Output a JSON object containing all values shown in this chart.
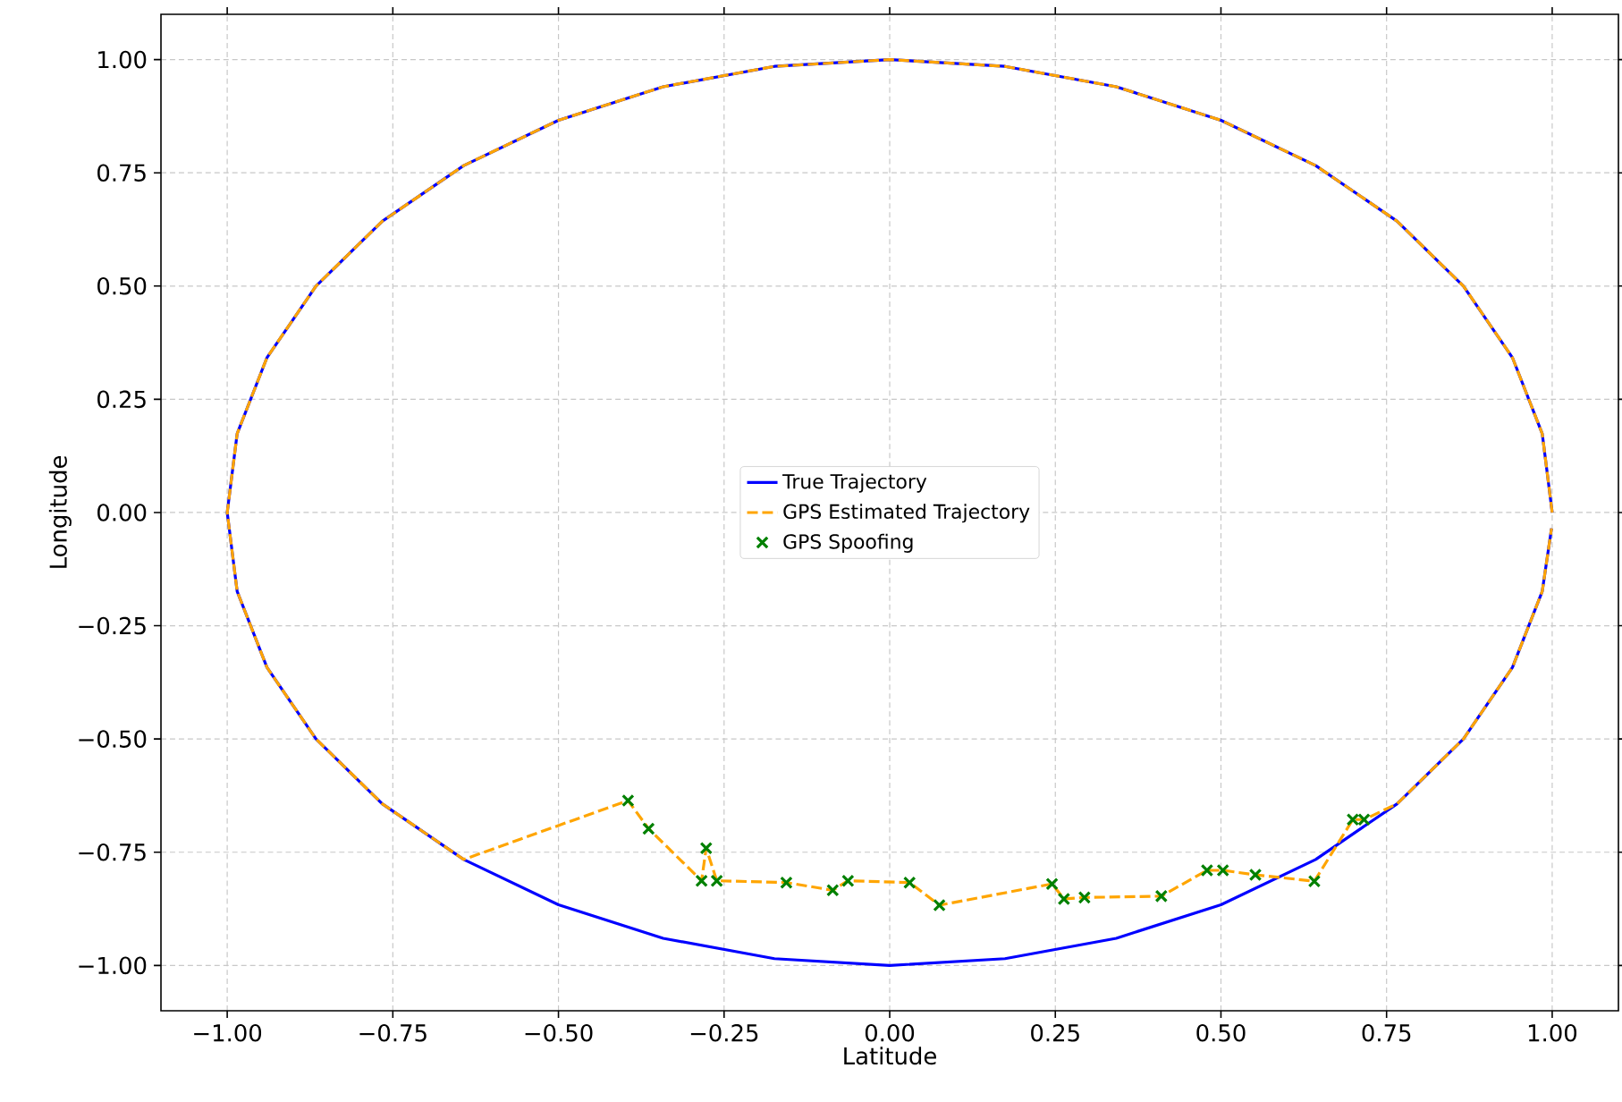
{
  "chart_data": {
    "type": "line",
    "xlabel": "Latitude",
    "ylabel": "Longitude",
    "xlim": [
      -1.1,
      1.1
    ],
    "ylim": [
      -1.1,
      1.1
    ],
    "xticks": [
      {
        "value": -1,
        "label": "−1.00"
      },
      {
        "value": -0.75,
        "label": "−0.75"
      },
      {
        "value": -0.5,
        "label": "−0.50"
      },
      {
        "value": -0.25,
        "label": "−0.25"
      },
      {
        "value": 0,
        "label": "0.00"
      },
      {
        "value": 0.25,
        "label": "0.25"
      },
      {
        "value": 0.5,
        "label": "0.50"
      },
      {
        "value": 0.75,
        "label": "0.75"
      },
      {
        "value": 1,
        "label": "1.00"
      }
    ],
    "yticks": [
      {
        "value": -1,
        "label": "−1.00"
      },
      {
        "value": -0.75,
        "label": "−0.75"
      },
      {
        "value": -0.5,
        "label": "−0.50"
      },
      {
        "value": -0.25,
        "label": "−0.25"
      },
      {
        "value": 0,
        "label": "0.00"
      },
      {
        "value": 0.25,
        "label": "0.25"
      },
      {
        "value": 0.5,
        "label": "0.50"
      },
      {
        "value": 0.75,
        "label": "0.75"
      },
      {
        "value": 1,
        "label": "1.00"
      }
    ],
    "grid": true,
    "legend": "center",
    "series": [
      {
        "name": "True Trajectory",
        "color": "#0000ff",
        "line_style": "solid",
        "marker": "none",
        "x": [
          1,
          0.985,
          0.94,
          0.866,
          0.766,
          0.643,
          0.5,
          0.342,
          0.174,
          0,
          -0.174,
          -0.342,
          -0.5,
          -0.643,
          -0.766,
          -0.866,
          -0.94,
          -0.985,
          -1,
          -0.985,
          -0.94,
          -0.866,
          -0.766,
          -0.643,
          -0.5,
          -0.342,
          -0.174,
          0,
          0.174,
          0.342,
          0.5,
          0.643,
          0.766,
          0.866,
          0.94,
          0.985,
          0.999
        ],
        "values": [
          0,
          0.174,
          0.342,
          0.5,
          0.643,
          0.766,
          0.866,
          0.94,
          0.985,
          1,
          0.985,
          0.94,
          0.866,
          0.766,
          0.643,
          0.5,
          0.342,
          0.174,
          0,
          -0.174,
          -0.342,
          -0.5,
          -0.643,
          -0.766,
          -0.866,
          -0.94,
          -0.985,
          -1,
          -0.985,
          -0.94,
          -0.866,
          -0.766,
          -0.643,
          -0.5,
          -0.342,
          -0.174,
          -0.035
        ]
      },
      {
        "name": "GPS Estimated Trajectory",
        "color": "#ffa500",
        "line_style": "dashed",
        "marker": "none",
        "x": [
          1,
          0.985,
          0.94,
          0.866,
          0.766,
          0.643,
          0.5,
          0.342,
          0.174,
          0,
          -0.174,
          -0.342,
          -0.5,
          -0.643,
          -0.766,
          -0.866,
          -0.94,
          -0.985,
          -1,
          -0.985,
          -0.94,
          -0.866,
          -0.766,
          -0.643,
          -0.395,
          -0.364,
          -0.284,
          -0.277,
          -0.261,
          -0.156,
          -0.086,
          -0.063,
          0.03,
          0.075,
          0.245,
          0.263,
          0.294,
          0.41,
          0.479,
          0.503,
          0.552,
          0.641,
          0.699,
          0.716,
          0.766,
          0.866,
          0.94,
          0.985,
          0.999
        ],
        "values": [
          0,
          0.174,
          0.342,
          0.5,
          0.643,
          0.766,
          0.866,
          0.94,
          0.985,
          1,
          0.985,
          0.94,
          0.866,
          0.766,
          0.643,
          0.5,
          0.342,
          0.174,
          0,
          -0.174,
          -0.342,
          -0.5,
          -0.643,
          -0.766,
          -0.636,
          -0.698,
          -0.813,
          -0.741,
          -0.813,
          -0.817,
          -0.834,
          -0.813,
          -0.817,
          -0.867,
          -0.82,
          -0.853,
          -0.85,
          -0.847,
          -0.79,
          -0.79,
          -0.8,
          -0.814,
          -0.678,
          -0.678,
          -0.643,
          -0.5,
          -0.342,
          -0.174,
          -0.035
        ]
      },
      {
        "name": "GPS Spoofing",
        "type": "scatter",
        "color": "#008000",
        "marker": "cross",
        "x": [
          -0.395,
          -0.364,
          -0.284,
          -0.277,
          -0.261,
          -0.156,
          -0.086,
          -0.063,
          0.03,
          0.075,
          0.245,
          0.263,
          0.294,
          0.41,
          0.479,
          0.503,
          0.552,
          0.641,
          0.699,
          0.716
        ],
        "values": [
          -0.636,
          -0.698,
          -0.813,
          -0.741,
          -0.813,
          -0.817,
          -0.834,
          -0.813,
          -0.817,
          -0.867,
          -0.82,
          -0.853,
          -0.85,
          -0.847,
          -0.79,
          -0.79,
          -0.8,
          -0.814,
          -0.678,
          -0.678
        ]
      }
    ]
  }
}
